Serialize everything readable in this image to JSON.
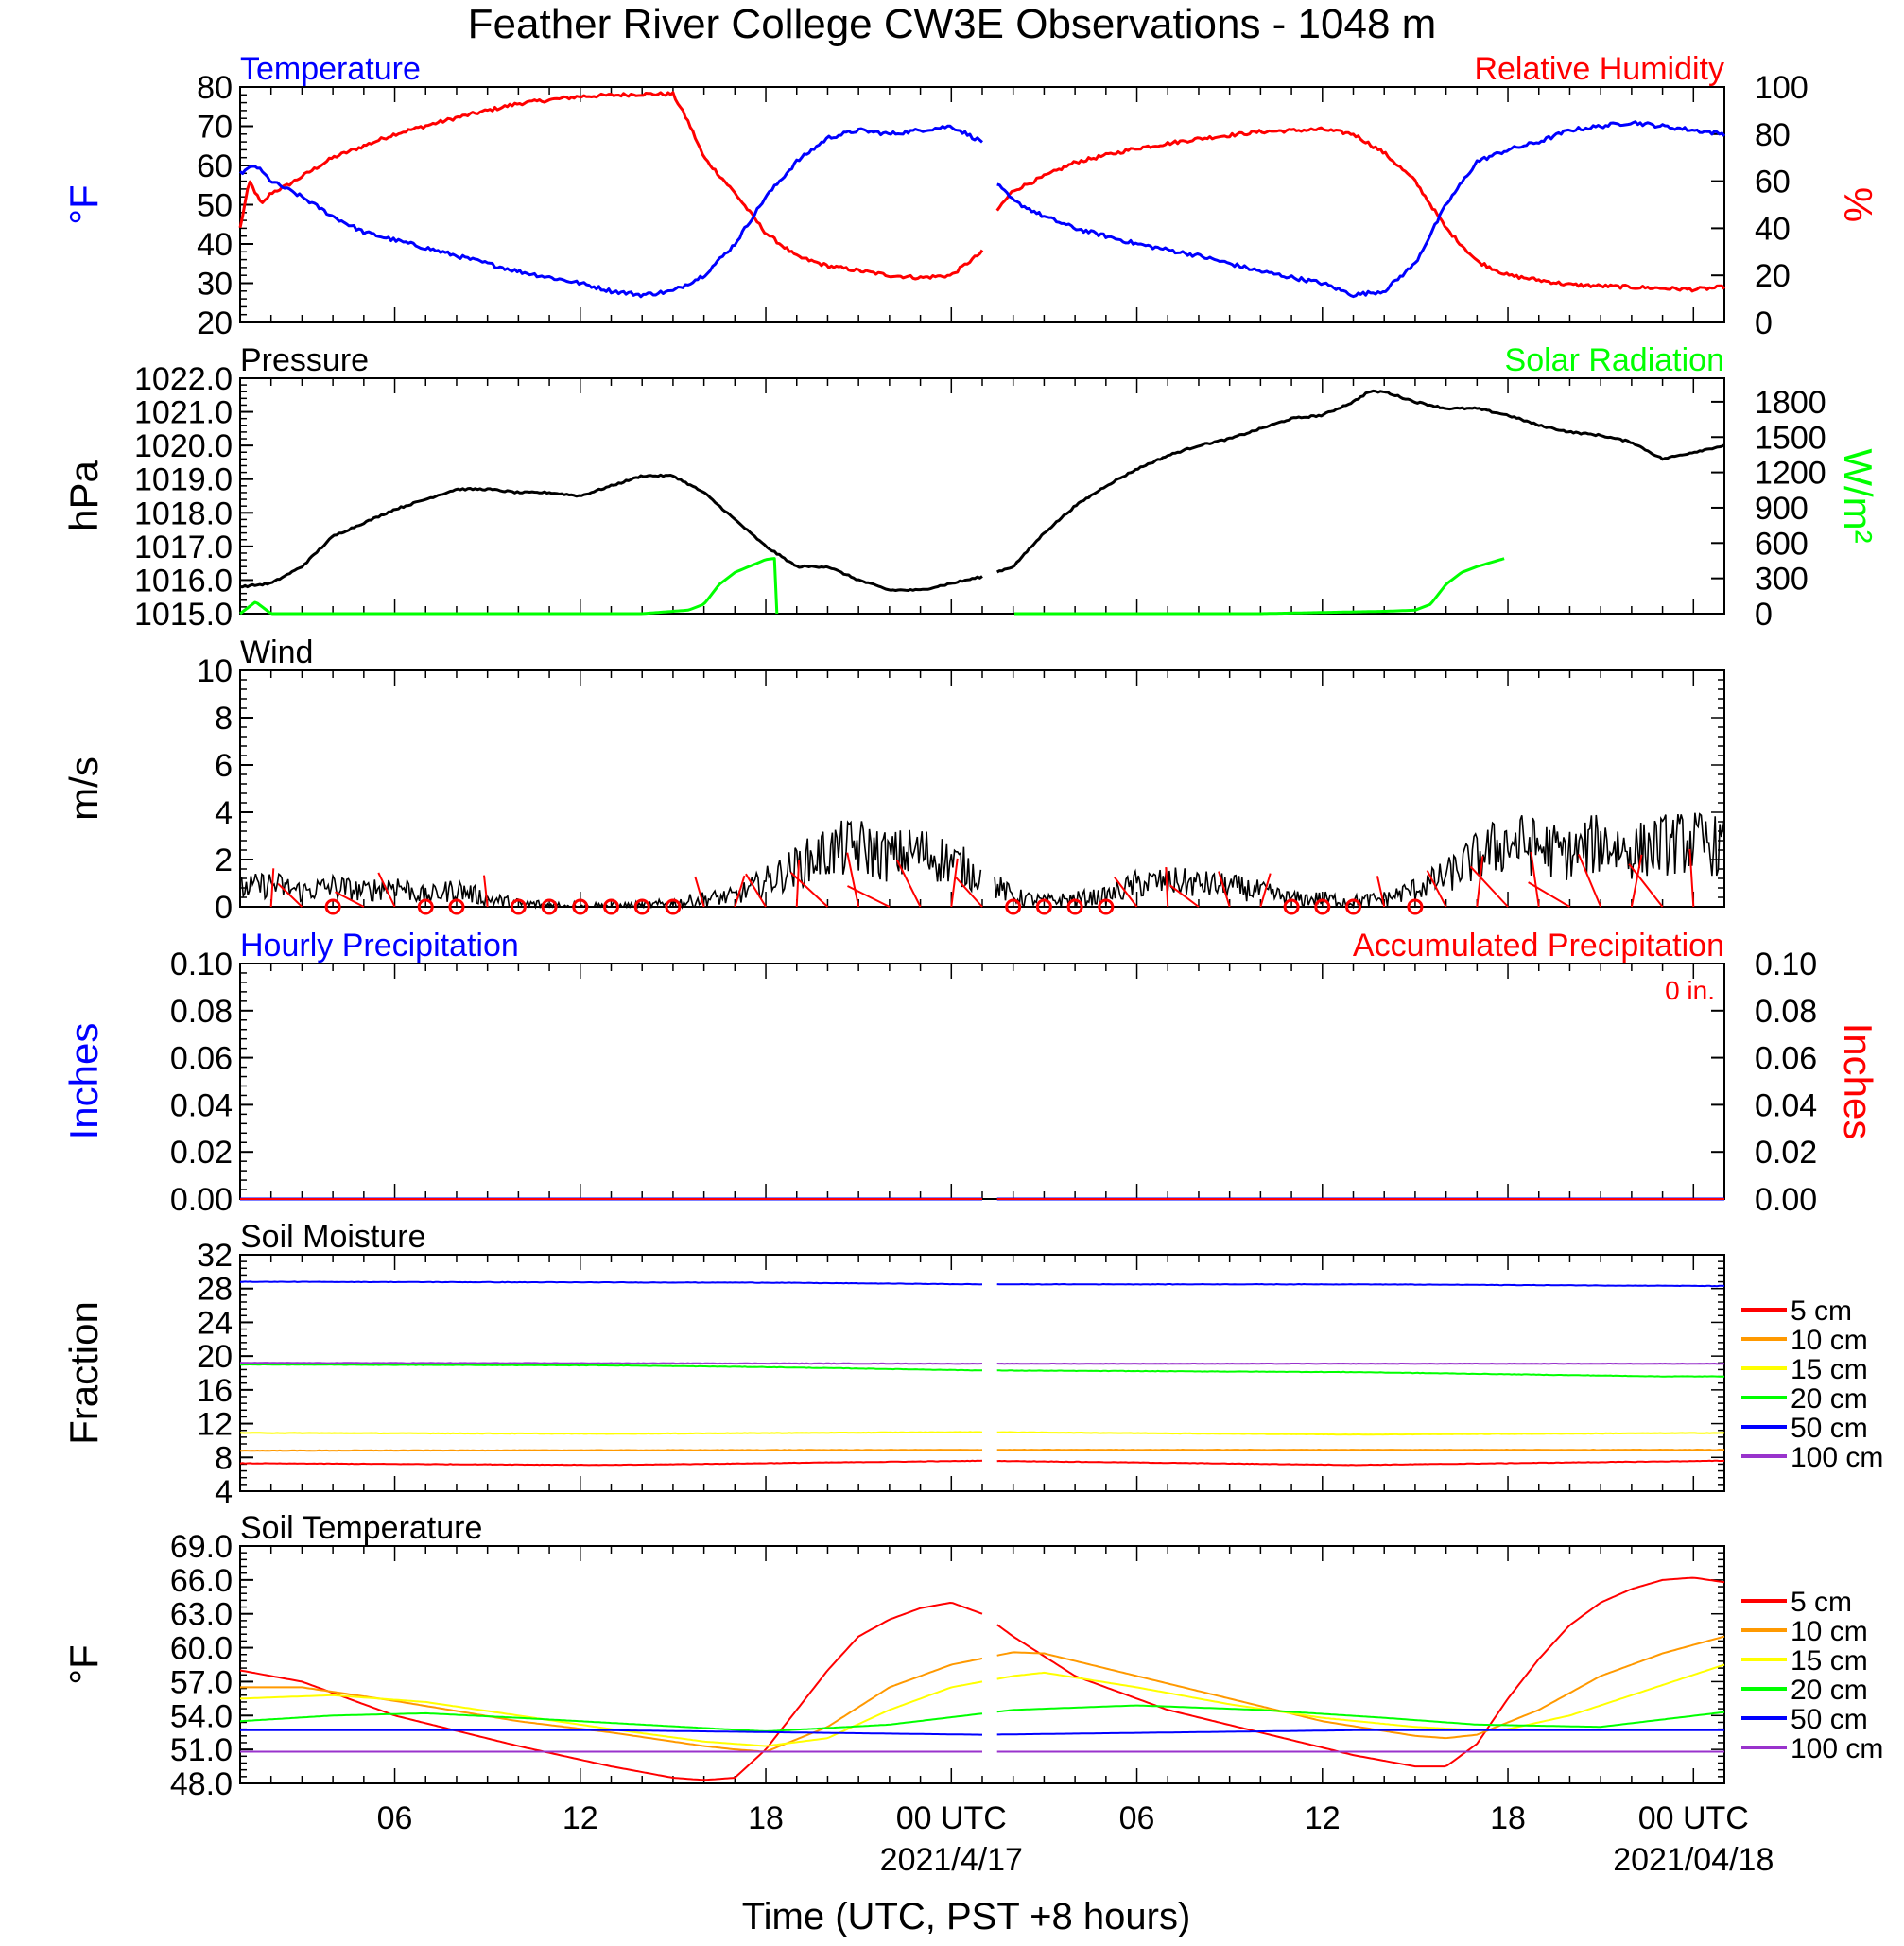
{
  "title": "Feather River College CW3E Observations - 1048 m",
  "xlabel": "Time (UTC, PST +8 hours)",
  "x_ticks": [
    "06",
    "12",
    "18",
    "00 UTC",
    "06",
    "12",
    "18",
    "00 UTC"
  ],
  "x_dates": [
    "2021/4/17",
    "2021/04/18"
  ],
  "colors": {
    "temperature": "#0000ff",
    "humidity": "#ff0000",
    "pressure": "#000000",
    "solar": "#00ff00",
    "wind": "#000000",
    "barb": "#ff0000",
    "hourly": "#0000ff",
    "accum": "#ff0000",
    "d5": "#ff0000",
    "d10": "#ff9900",
    "d15": "#ffff00",
    "d20": "#00ff00",
    "d50": "#0000ff",
    "d100": "#9933cc"
  },
  "panels": {
    "temp_rh": {
      "left_title": "Temperature",
      "right_title": "Relative Humidity",
      "left_label": "°F",
      "right_label": "%",
      "left_ticks": [
        "80",
        "70",
        "60",
        "50",
        "40",
        "30",
        "20"
      ],
      "right_ticks": [
        "100",
        "80",
        "60",
        "40",
        "20",
        "0"
      ]
    },
    "pressure_solar": {
      "left_title": "Pressure",
      "right_title": "Solar Radiation",
      "left_label": "hPa",
      "right_label": "W/m²",
      "left_ticks": [
        "1022.0",
        "1021.0",
        "1020.0",
        "1019.0",
        "1018.0",
        "1017.0",
        "1016.0",
        "1015.0"
      ],
      "right_ticks": [
        "1800",
        "1500",
        "1200",
        "900",
        "600",
        "300",
        "0"
      ]
    },
    "wind": {
      "left_title": "Wind",
      "left_label": "m/s",
      "left_ticks": [
        "10",
        "8",
        "6",
        "4",
        "2",
        "0"
      ]
    },
    "precip": {
      "left_title": "Hourly Precipitation",
      "right_title": "Accumulated Precipitation",
      "total_text": "0 in.",
      "left_label": "Inches",
      "right_label": "Inches",
      "left_ticks": [
        "0.10",
        "0.08",
        "0.06",
        "0.04",
        "0.02",
        "0.00"
      ],
      "right_ticks": [
        "0.10",
        "0.08",
        "0.06",
        "0.04",
        "0.02",
        "0.00"
      ]
    },
    "soil_moisture": {
      "left_title": "Soil Moisture",
      "left_label": "Fraction",
      "left_ticks": [
        "32",
        "28",
        "24",
        "20",
        "16",
        "12",
        "8",
        "4"
      ],
      "legend": [
        "5 cm",
        "10 cm",
        "15 cm",
        "20 cm",
        "50 cm",
        "100 cm"
      ]
    },
    "soil_temp": {
      "left_title": "Soil Temperature",
      "left_label": "°F",
      "left_ticks": [
        "69.0",
        "66.0",
        "63.0",
        "60.0",
        "57.0",
        "54.0",
        "51.0",
        "48.0"
      ],
      "legend": [
        "5 cm",
        "10 cm",
        "15 cm",
        "20 cm",
        "50 cm",
        "100 cm"
      ]
    }
  },
  "chart_data": [
    {
      "type": "line",
      "title": "Temperature / Relative Humidity",
      "x_units": "hours since 2021-04-16 00 UTC",
      "xlim": [
        1,
        49
      ],
      "series": [
        {
          "name": "Temperature",
          "axis": "left",
          "ylim": [
            20,
            80
          ],
          "x": [
            1,
            1.5,
            2,
            3,
            4,
            5,
            6,
            8,
            10,
            12,
            13,
            14,
            15,
            16,
            17,
            18,
            19,
            20,
            21,
            22,
            23,
            24,
            25,
            25.5,
            26,
            27,
            28,
            30,
            32,
            34,
            36,
            37,
            38,
            39,
            40,
            41,
            42,
            43,
            44,
            45,
            46,
            47,
            48,
            49
          ],
          "y": [
            58,
            60,
            56,
            52,
            47,
            43,
            41,
            37,
            33,
            30,
            28,
            27,
            28,
            32,
            40,
            52,
            61,
            67,
            69,
            68,
            69,
            70,
            66,
            55,
            51,
            47,
            44,
            40,
            37,
            33,
            30,
            27,
            28,
            35,
            50,
            61,
            64,
            66,
            69,
            70,
            71,
            70,
            69,
            68
          ]
        },
        {
          "name": "Relative Humidity",
          "axis": "right",
          "ylim": [
            0,
            100
          ],
          "x": [
            1,
            1.3,
            1.7,
            2,
            2.5,
            3,
            4,
            5,
            6,
            8,
            10,
            12,
            14,
            15,
            15.5,
            16,
            17,
            18,
            19,
            20,
            21,
            22,
            23,
            24,
            25,
            25.5,
            26,
            27,
            28,
            29,
            30,
            32,
            34,
            36,
            37,
            38,
            39,
            40,
            41,
            42,
            44,
            46,
            48,
            49
          ],
          "y": [
            40,
            60,
            50,
            55,
            58,
            62,
            70,
            75,
            80,
            87,
            93,
            96,
            97,
            97,
            85,
            70,
            55,
            38,
            28,
            24,
            22,
            20,
            19,
            20,
            30,
            48,
            56,
            62,
            68,
            71,
            74,
            78,
            81,
            82,
            80,
            72,
            60,
            40,
            26,
            20,
            16,
            15,
            14,
            15
          ]
        }
      ]
    },
    {
      "type": "line",
      "title": "Pressure / Solar Radiation",
      "x_units": "hours since 2021-04-16 00 UTC",
      "xlim": [
        1,
        49
      ],
      "series": [
        {
          "name": "Pressure",
          "axis": "left",
          "ylim": [
            1015,
            1022
          ],
          "x": [
            1,
            2,
            3,
            4,
            5,
            6,
            7,
            8,
            9,
            10,
            11,
            12,
            13,
            14,
            15,
            16,
            17,
            18,
            19,
            20,
            21,
            22,
            23,
            24,
            25,
            26,
            27,
            28,
            29,
            30,
            31,
            32,
            33,
            34,
            35,
            36,
            37,
            37.5,
            38,
            39,
            40,
            41,
            42,
            43,
            44,
            45,
            46,
            47,
            48,
            49
          ],
          "y": [
            1015.8,
            1015.9,
            1016.4,
            1017.3,
            1017.7,
            1018.1,
            1018.4,
            1018.7,
            1018.7,
            1018.6,
            1018.6,
            1018.5,
            1018.8,
            1019.1,
            1019.1,
            1018.6,
            1017.8,
            1017.0,
            1016.4,
            1016.4,
            1016.0,
            1015.7,
            1015.7,
            1015.9,
            1016.1,
            1016.4,
            1017.4,
            1018.2,
            1018.8,
            1019.3,
            1019.7,
            1020.0,
            1020.2,
            1020.5,
            1020.8,
            1020.9,
            1021.3,
            1021.6,
            1021.6,
            1021.3,
            1021.1,
            1021.1,
            1020.9,
            1020.6,
            1020.4,
            1020.3,
            1020.1,
            1019.6,
            1019.8,
            1020.0
          ]
        },
        {
          "name": "Solar Radiation",
          "axis": "right",
          "ylim": [
            0,
            1800
          ],
          "x": [
            1,
            1.5,
            2,
            3,
            10,
            14,
            15,
            15.5,
            16,
            16.5,
            17,
            18,
            18.3,
            18.35,
            26,
            27,
            30,
            34,
            38,
            39,
            39.5,
            40,
            40.5,
            41,
            41.9,
            41.95
          ],
          "y": [
            0,
            100,
            0,
            0,
            0,
            0,
            20,
            30,
            80,
            250,
            350,
            460,
            470,
            0,
            0,
            0,
            0,
            0,
            20,
            30,
            80,
            250,
            350,
            400,
            470,
            0
          ]
        }
      ]
    },
    {
      "type": "line",
      "title": "Wind",
      "x_units": "hours since 2021-04-16 00 UTC",
      "xlim": [
        1,
        49
      ],
      "ylim": [
        0,
        10
      ],
      "series": [
        {
          "name": "Wind speed (m/s)",
          "x": [
            1,
            2,
            3,
            4,
            5,
            6,
            7,
            8,
            9,
            10,
            12,
            14,
            15,
            16,
            17,
            18,
            19,
            20,
            21,
            22,
            23,
            24,
            25,
            26,
            27,
            28,
            29,
            30,
            31,
            32,
            33,
            34,
            35,
            36,
            37,
            38,
            39,
            40,
            41,
            42,
            43,
            44,
            45,
            46,
            47,
            48,
            49
          ],
          "y": [
            0.7,
            0.9,
            0.6,
            0.8,
            0.6,
            0.9,
            0.4,
            0.7,
            0.3,
            0.1,
            0.0,
            0.0,
            0.1,
            0.3,
            0.4,
            1.0,
            1.6,
            2.2,
            2.4,
            2.0,
            2.2,
            1.8,
            1.2,
            0.4,
            0.2,
            0.3,
            0.4,
            0.9,
            1.0,
            0.9,
            0.8,
            0.6,
            0.3,
            0.3,
            0.2,
            0.3,
            0.7,
            1.2,
            2.0,
            2.6,
            2.4,
            2.1,
            2.6,
            2.2,
            2.5,
            2.6,
            2.4
          ]
        }
      ]
    },
    {
      "type": "line",
      "title": "Hourly Precipitation / Accumulated Precipitation",
      "x_units": "hours since 2021-04-16 00 UTC",
      "xlim": [
        1,
        49
      ],
      "series": [
        {
          "name": "Hourly Precipitation",
          "axis": "left",
          "ylim": [
            0,
            0.1
          ],
          "x": [
            1,
            49
          ],
          "y": [
            0,
            0
          ]
        },
        {
          "name": "Accumulated Precipitation",
          "axis": "right",
          "ylim": [
            0,
            0.1
          ],
          "x": [
            1,
            49
          ],
          "y": [
            0,
            0
          ]
        }
      ]
    },
    {
      "type": "line",
      "title": "Soil Moisture",
      "x_units": "hours since 2021-04-16 00 UTC",
      "xlim": [
        1,
        49
      ],
      "ylim": [
        4,
        32
      ],
      "series": [
        {
          "name": "5 cm",
          "x": [
            1,
            13,
            25,
            37,
            49
          ],
          "y": [
            7.3,
            7.1,
            7.6,
            7.1,
            7.6
          ]
        },
        {
          "name": "10 cm",
          "x": [
            1,
            25,
            49
          ],
          "y": [
            8.8,
            8.9,
            8.9
          ]
        },
        {
          "name": "15 cm",
          "x": [
            1,
            13,
            25,
            37,
            49
          ],
          "y": [
            10.9,
            10.8,
            11.0,
            10.7,
            10.9
          ]
        },
        {
          "name": "20 cm",
          "x": [
            1,
            13,
            18,
            25,
            37,
            47,
            49
          ],
          "y": [
            19.0,
            18.9,
            18.7,
            18.3,
            18.1,
            17.6,
            17.6
          ]
        },
        {
          "name": "50 cm",
          "x": [
            1,
            18,
            25,
            37,
            49
          ],
          "y": [
            28.8,
            28.7,
            28.5,
            28.5,
            28.3
          ]
        },
        {
          "name": "100 cm",
          "x": [
            1,
            25,
            49
          ],
          "y": [
            19.2,
            19.1,
            19.1
          ]
        }
      ]
    },
    {
      "type": "line",
      "title": "Soil Temperature",
      "x_units": "hours since 2021-04-16 00 UTC",
      "xlim": [
        1,
        49
      ],
      "ylim": [
        48,
        69
      ],
      "series": [
        {
          "name": "5 cm",
          "x": [
            1,
            3,
            6,
            10,
            13,
            15,
            16,
            17,
            18,
            19,
            20,
            21,
            22,
            23,
            24,
            25,
            26,
            28,
            31,
            34,
            37,
            39,
            40,
            41,
            42,
            43,
            44,
            45,
            46,
            47,
            48,
            49
          ],
          "y": [
            58.0,
            57.0,
            54.0,
            51.3,
            49.5,
            48.5,
            48.3,
            48.5,
            51.0,
            54.5,
            58.0,
            61.0,
            62.5,
            63.5,
            64.0,
            63.0,
            61.0,
            57.5,
            54.5,
            52.5,
            50.5,
            49.5,
            49.5,
            51.5,
            55.5,
            59.0,
            62.0,
            64.0,
            65.2,
            66.0,
            66.2,
            65.8
          ]
        },
        {
          "name": "10 cm",
          "x": [
            1,
            3,
            6,
            10,
            13,
            16,
            17,
            18,
            20,
            22,
            24,
            26,
            27,
            30,
            33,
            36,
            39,
            40,
            41,
            43,
            45,
            47,
            49
          ],
          "y": [
            56.5,
            56.5,
            55.3,
            53.5,
            52.5,
            51.3,
            51.0,
            50.8,
            53.0,
            56.5,
            58.5,
            59.6,
            59.5,
            57.5,
            55.5,
            53.5,
            52.2,
            52.0,
            52.3,
            54.5,
            57.5,
            59.5,
            61.0
          ]
        },
        {
          "name": "15 cm",
          "x": [
            1,
            4,
            7,
            10,
            13,
            16,
            18,
            20,
            22,
            24,
            26,
            27,
            30,
            33,
            36,
            39,
            41,
            42,
            44,
            46,
            49
          ],
          "y": [
            55.5,
            55.8,
            55.2,
            54.0,
            52.8,
            51.7,
            51.3,
            52.0,
            54.5,
            56.5,
            57.5,
            57.8,
            56.5,
            55.0,
            53.8,
            53.0,
            52.7,
            52.8,
            54.0,
            55.8,
            58.5
          ]
        },
        {
          "name": "20 cm",
          "x": [
            1,
            4,
            7,
            10,
            14,
            18,
            22,
            26,
            30,
            34,
            38,
            41,
            45,
            49
          ],
          "y": [
            53.5,
            54.0,
            54.2,
            53.8,
            53.2,
            52.6,
            53.2,
            54.5,
            54.9,
            54.5,
            53.8,
            53.2,
            53.0,
            54.3
          ]
        },
        {
          "name": "50 cm",
          "x": [
            1,
            13,
            25,
            37,
            49
          ],
          "y": [
            52.7,
            52.7,
            52.3,
            52.7,
            52.7
          ]
        },
        {
          "name": "100 cm",
          "x": [
            1,
            25,
            49
          ],
          "y": [
            50.8,
            50.8,
            50.8
          ]
        }
      ]
    }
  ]
}
